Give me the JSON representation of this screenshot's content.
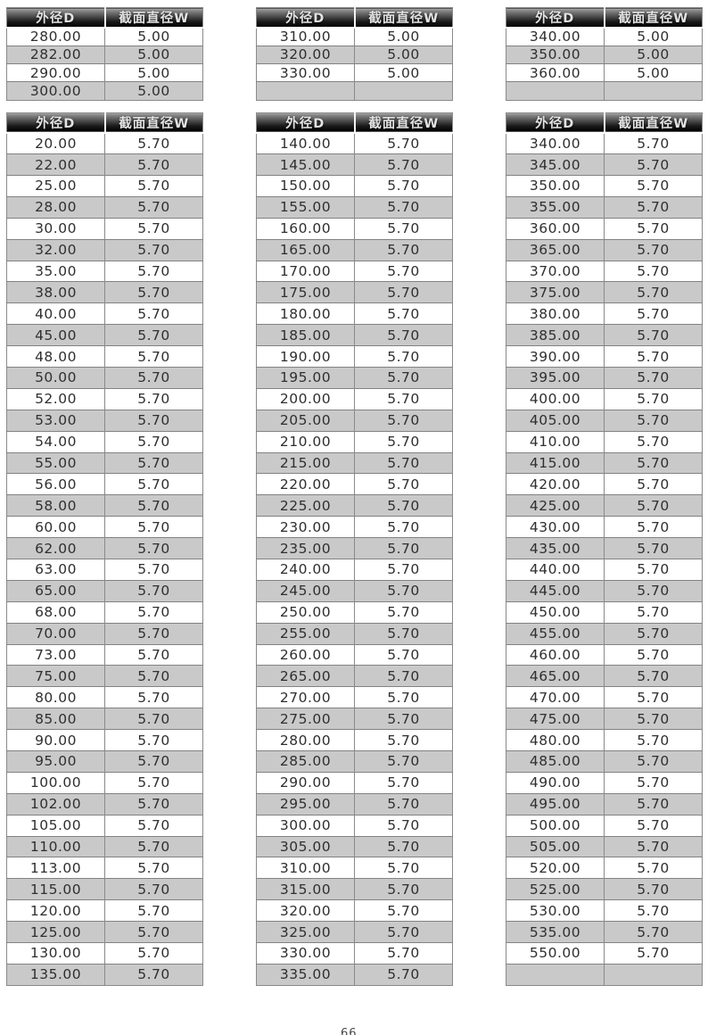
{
  "document": {
    "page_number": "66"
  },
  "columns": {
    "d_label": "外径D",
    "w_label": "截面直径W"
  },
  "colors": {
    "header_gradient_top": "#b2b2b2",
    "header_gradient_bottom": "#000000",
    "header_text": "#e3e3e3",
    "row_shaded": "#c9c9c9",
    "row_plain": "#ffffff",
    "grid_line": "#8a8a8a",
    "cell_text": "#2f2f2f"
  },
  "tables": {
    "top": [
      {
        "w_value": "5.00",
        "d_values": [
          "280.00",
          "282.00",
          "290.00",
          "300.00"
        ]
      },
      {
        "w_value": "5.00",
        "d_values": [
          "310.00",
          "320.00",
          "330.00",
          ""
        ]
      },
      {
        "w_value": "5.00",
        "d_values": [
          "340.00",
          "350.00",
          "360.00",
          ""
        ]
      }
    ],
    "bottom": [
      {
        "w_value": "5.70",
        "d_values": [
          "20.00",
          "22.00",
          "25.00",
          "28.00",
          "30.00",
          "32.00",
          "35.00",
          "38.00",
          "40.00",
          "45.00",
          "48.00",
          "50.00",
          "52.00",
          "53.00",
          "54.00",
          "55.00",
          "56.00",
          "58.00",
          "60.00",
          "62.00",
          "63.00",
          "65.00",
          "68.00",
          "70.00",
          "73.00",
          "75.00",
          "80.00",
          "85.00",
          "90.00",
          "95.00",
          "100.00",
          "102.00",
          "105.00",
          "110.00",
          "113.00",
          "115.00",
          "120.00",
          "125.00",
          "130.00",
          "135.00"
        ]
      },
      {
        "w_value": "5.70",
        "d_values": [
          "140.00",
          "145.00",
          "150.00",
          "155.00",
          "160.00",
          "165.00",
          "170.00",
          "175.00",
          "180.00",
          "185.00",
          "190.00",
          "195.00",
          "200.00",
          "205.00",
          "210.00",
          "215.00",
          "220.00",
          "225.00",
          "230.00",
          "235.00",
          "240.00",
          "245.00",
          "250.00",
          "255.00",
          "260.00",
          "265.00",
          "270.00",
          "275.00",
          "280.00",
          "285.00",
          "290.00",
          "295.00",
          "300.00",
          "305.00",
          "310.00",
          "315.00",
          "320.00",
          "325.00",
          "330.00",
          "335.00"
        ]
      },
      {
        "w_value": "5.70",
        "d_values": [
          "340.00",
          "345.00",
          "350.00",
          "355.00",
          "360.00",
          "365.00",
          "370.00",
          "375.00",
          "380.00",
          "385.00",
          "390.00",
          "395.00",
          "400.00",
          "405.00",
          "410.00",
          "415.00",
          "420.00",
          "425.00",
          "430.00",
          "435.00",
          "440.00",
          "445.00",
          "450.00",
          "455.00",
          "460.00",
          "465.00",
          "470.00",
          "475.00",
          "480.00",
          "485.00",
          "490.00",
          "495.00",
          "500.00",
          "505.00",
          "520.00",
          "525.00",
          "530.00",
          "535.00",
          "550.00",
          ""
        ]
      }
    ]
  }
}
